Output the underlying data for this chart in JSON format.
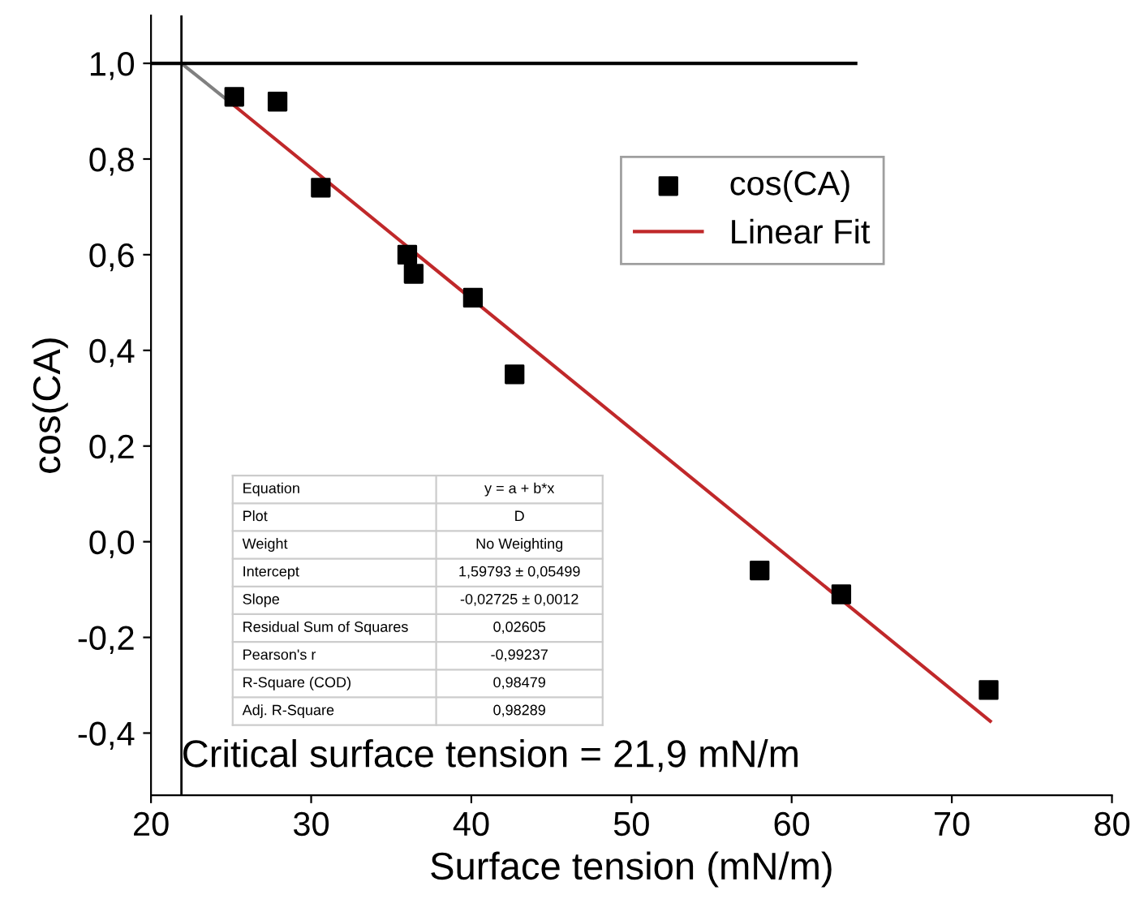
{
  "chart_data": {
    "type": "scatter",
    "xlabel": "Surface tension (mN/m)",
    "ylabel": "cos(CA)",
    "xlim": [
      20,
      80
    ],
    "ylim": [
      -0.53,
      1.1
    ],
    "xticks": [
      20,
      30,
      40,
      50,
      60,
      70,
      80
    ],
    "yticks": [
      {
        "value": -0.4,
        "label": "-0,4"
      },
      {
        "value": -0.2,
        "label": "-0,2"
      },
      {
        "value": 0.0,
        "label": "0,0"
      },
      {
        "value": 0.2,
        "label": "0,2"
      },
      {
        "value": 0.4,
        "label": "0,4"
      },
      {
        "value": 0.6,
        "label": "0,6"
      },
      {
        "value": 0.8,
        "label": "0,8"
      },
      {
        "value": 1.0,
        "label": "1,0"
      }
    ],
    "grid": false,
    "legend": "right",
    "series": [
      {
        "name": "cos(CA)",
        "marker": "square",
        "color": "#000000",
        "x": [
          25.2,
          27.9,
          30.6,
          36.0,
          36.4,
          40.1,
          42.7,
          58.0,
          63.1,
          72.3
        ],
        "values": [
          0.93,
          0.92,
          0.74,
          0.6,
          0.56,
          0.51,
          0.35,
          -0.06,
          -0.11,
          -0.31
        ]
      },
      {
        "name": "Linear Fit",
        "type": "line",
        "color": "#c0282a",
        "x": [
          25.0,
          72.4
        ],
        "values": [
          0.917,
          -0.375
        ]
      },
      {
        "type": "line",
        "color": "#808080",
        "x": [
          21.9,
          25.0
        ],
        "values": [
          1.0,
          0.917
        ]
      },
      {
        "type": "line",
        "color": "#000000",
        "x": [
          20,
          64
        ],
        "values": [
          1.0,
          1.0
        ]
      }
    ],
    "ref_lines": [
      {
        "axis": "x",
        "value": 21.9,
        "color": "#000000"
      }
    ],
    "annotations": [
      {
        "text": "Critical surface tension = 21,9 mN/m",
        "x": 21.9,
        "y": -0.45
      },
      "Equation",
      "y = a + b*x",
      "Plot",
      "D",
      "Weight",
      "No Weighting",
      "Intercept",
      "1,59793 ± 0,05499",
      "Slope",
      "-0,02725 ± 0,0012",
      "Residual Sum of Squares",
      "0,02605",
      "Pearson's r",
      "-0,99237",
      "R-Square (COD)",
      "0,98479",
      "Adj. R-Square",
      "0,98289"
    ]
  }
}
